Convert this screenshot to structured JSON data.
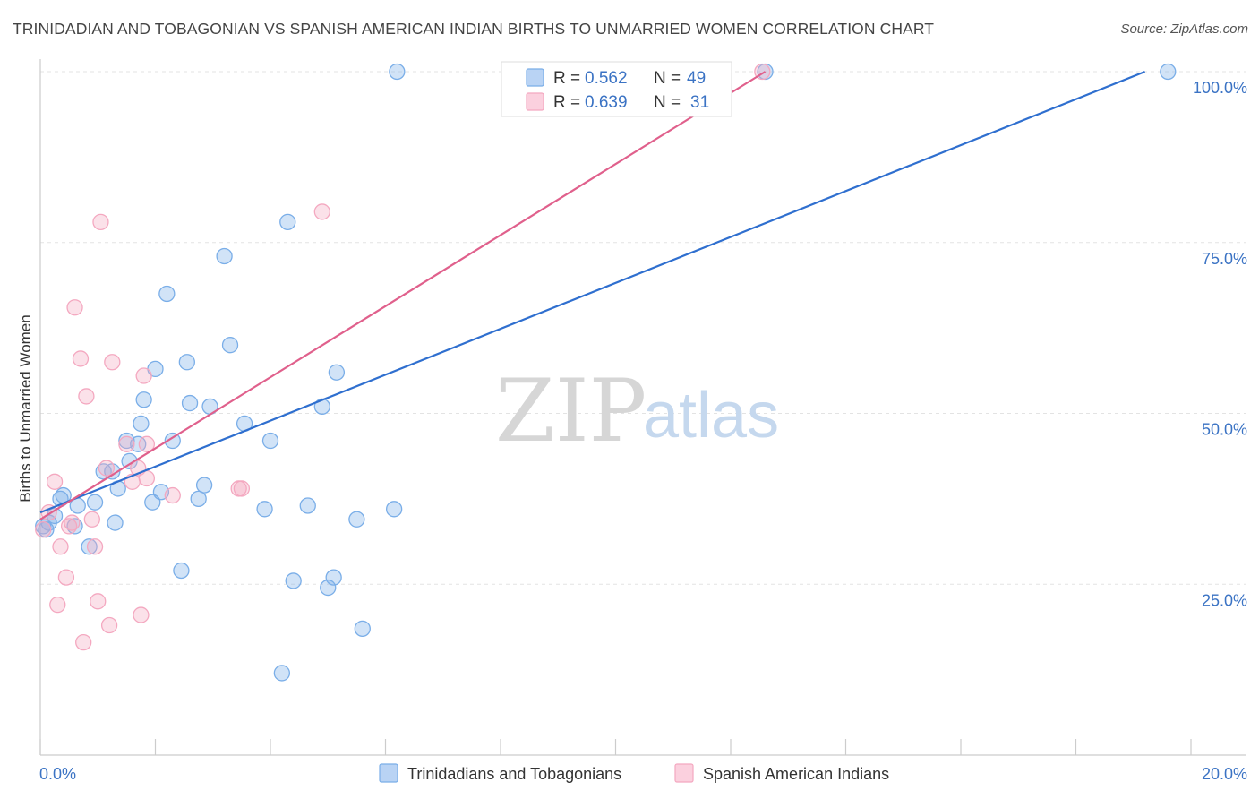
{
  "title": "TRINIDADIAN AND TOBAGONIAN VS SPANISH AMERICAN INDIAN BIRTHS TO UNMARRIED WOMEN CORRELATION CHART",
  "source": "Source: ZipAtlas.com",
  "watermark": {
    "zip": "ZIP",
    "atlas": "atlas"
  },
  "legend": {
    "rows": [
      {
        "r_label": "R = ",
        "r_value": "0.562",
        "n_label": "N = ",
        "n_value": "49"
      },
      {
        "r_label": "R = ",
        "r_value": "0.639",
        "n_label": "N = ",
        "n_value": "31"
      }
    ]
  },
  "chart_data": {
    "type": "scatter",
    "title": "TRINIDADIAN AND TOBAGONIAN VS SPANISH AMERICAN INDIAN BIRTHS TO UNMARRIED WOMEN CORRELATION CHART",
    "xlabel": "",
    "ylabel": "Births to Unmarried Women",
    "xlim": [
      0,
      20
    ],
    "ylim": [
      0,
      100
    ],
    "x_tick_labels": [
      "0.0%",
      "20.0%"
    ],
    "y_tick_labels": [
      "100.0%",
      "75.0%",
      "50.0%",
      "25.0%"
    ],
    "y_tick_values": [
      100,
      75,
      50,
      25
    ],
    "grid": true,
    "legend_position": "top-center",
    "series": [
      {
        "name": "Trinidadians and Tobagonians",
        "color": "#7aaee8",
        "line_color": "#2f6fcf",
        "r": 0.562,
        "n": 49,
        "trendline": [
          [
            0,
            35.5
          ],
          [
            19.2,
            100
          ]
        ],
        "points": [
          [
            0.05,
            33.5
          ],
          [
            0.1,
            33.0
          ],
          [
            0.15,
            34.0
          ],
          [
            0.25,
            35.0
          ],
          [
            0.35,
            37.5
          ],
          [
            0.4,
            38.0
          ],
          [
            0.6,
            33.5
          ],
          [
            0.65,
            36.5
          ],
          [
            0.85,
            30.5
          ],
          [
            0.95,
            37.0
          ],
          [
            1.1,
            41.5
          ],
          [
            1.25,
            41.5
          ],
          [
            1.3,
            34.0
          ],
          [
            1.35,
            39.0
          ],
          [
            1.5,
            46.0
          ],
          [
            1.55,
            43.0
          ],
          [
            1.7,
            45.5
          ],
          [
            1.75,
            48.5
          ],
          [
            1.8,
            52.0
          ],
          [
            1.95,
            37.0
          ],
          [
            2.0,
            56.5
          ],
          [
            2.1,
            38.5
          ],
          [
            2.2,
            67.5
          ],
          [
            2.3,
            46.0
          ],
          [
            2.45,
            27.0
          ],
          [
            2.55,
            57.5
          ],
          [
            2.6,
            51.5
          ],
          [
            2.75,
            37.5
          ],
          [
            2.85,
            39.5
          ],
          [
            2.95,
            51.0
          ],
          [
            3.2,
            73.0
          ],
          [
            3.3,
            60.0
          ],
          [
            3.55,
            48.5
          ],
          [
            3.9,
            36.0
          ],
          [
            4.0,
            46.0
          ],
          [
            4.2,
            12.0
          ],
          [
            4.3,
            78.0
          ],
          [
            4.4,
            25.5
          ],
          [
            4.65,
            36.5
          ],
          [
            4.9,
            51.0
          ],
          [
            5.0,
            24.5
          ],
          [
            5.1,
            26.0
          ],
          [
            5.15,
            56.0
          ],
          [
            5.5,
            34.5
          ],
          [
            5.6,
            18.5
          ],
          [
            6.15,
            36.0
          ],
          [
            6.2,
            100.0
          ],
          [
            12.6,
            100.0
          ],
          [
            19.6,
            100.0
          ]
        ]
      },
      {
        "name": "Spanish American Indians",
        "color": "#f4a8c0",
        "line_color": "#e0608c",
        "r": 0.639,
        "n": 31,
        "trendline": [
          [
            0,
            34.5
          ],
          [
            12.6,
            100
          ]
        ],
        "points": [
          [
            0.05,
            33.0
          ],
          [
            0.15,
            35.5
          ],
          [
            0.25,
            40.0
          ],
          [
            0.3,
            22.0
          ],
          [
            0.35,
            30.5
          ],
          [
            0.45,
            26.0
          ],
          [
            0.5,
            33.5
          ],
          [
            0.55,
            34.0
          ],
          [
            0.6,
            65.5
          ],
          [
            0.7,
            58.0
          ],
          [
            0.75,
            16.5
          ],
          [
            0.8,
            52.5
          ],
          [
            0.9,
            34.5
          ],
          [
            0.95,
            30.5
          ],
          [
            1.0,
            22.5
          ],
          [
            1.05,
            78.0
          ],
          [
            1.15,
            42.0
          ],
          [
            1.2,
            19.0
          ],
          [
            1.25,
            57.5
          ],
          [
            1.5,
            45.5
          ],
          [
            1.6,
            40.0
          ],
          [
            1.7,
            42.0
          ],
          [
            1.75,
            20.5
          ],
          [
            1.8,
            55.5
          ],
          [
            1.85,
            40.5
          ],
          [
            1.85,
            45.5
          ],
          [
            2.3,
            38.0
          ],
          [
            3.45,
            39.0
          ],
          [
            3.5,
            39.0
          ],
          [
            4.9,
            79.5
          ],
          [
            12.55,
            100.0
          ]
        ]
      }
    ]
  }
}
